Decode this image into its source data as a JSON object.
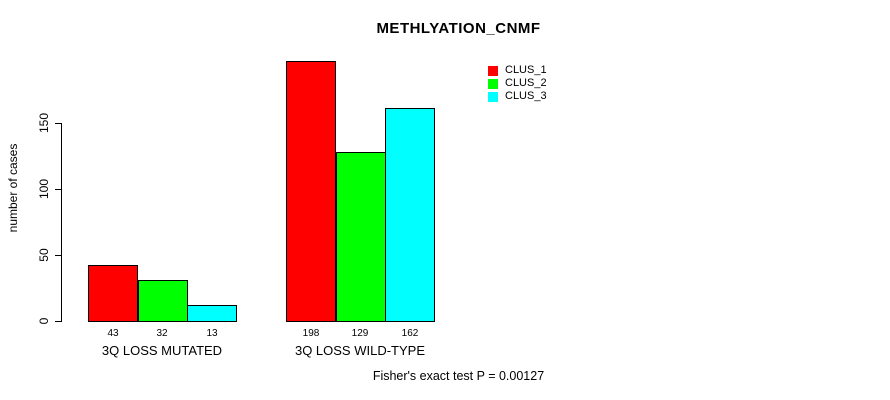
{
  "title": "METHLYATION_CNMF",
  "ylabel": "number of cases",
  "footer": "Fisher's exact test P = 0.00127",
  "legend": {
    "position": "top-right",
    "items": [
      {
        "label": "CLUS_1",
        "color": "#ff0000"
      },
      {
        "label": "CLUS_2",
        "color": "#00ff00"
      },
      {
        "label": "CLUS_3",
        "color": "#00ffff"
      }
    ]
  },
  "chart_data": {
    "type": "bar",
    "title": "METHLYATION_CNMF",
    "xlabel": "",
    "ylabel": "number of cases",
    "categories": [
      "3Q LOSS MUTATED",
      "3Q LOSS WILD-TYPE"
    ],
    "series": [
      {
        "name": "CLUS_1",
        "color": "#ff0000",
        "values": [
          43,
          198
        ]
      },
      {
        "name": "CLUS_2",
        "color": "#00ff00",
        "values": [
          32,
          129
        ]
      },
      {
        "name": "CLUS_3",
        "color": "#00ffff",
        "values": [
          13,
          162
        ]
      }
    ],
    "bar_value_labels": [
      [
        43,
        32,
        13
      ],
      [
        198,
        129,
        162
      ]
    ],
    "yticks": [
      0,
      50,
      100,
      150
    ],
    "ylim": [
      0,
      200
    ],
    "grid": false,
    "bar_border_color": "#000000",
    "legend_position": "top-right",
    "annotation": "Fisher's exact test P = 0.00127"
  }
}
